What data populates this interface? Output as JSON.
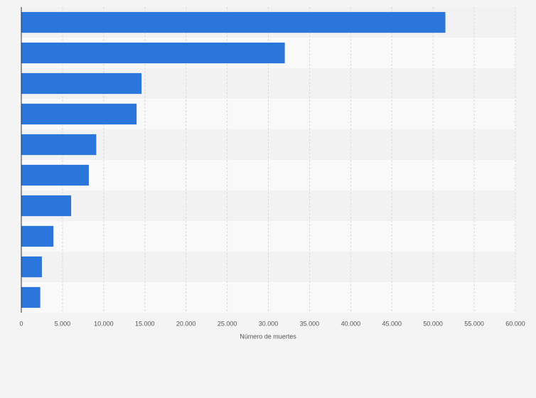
{
  "chart_data": {
    "type": "hbar",
    "x_label": "Número de muertes",
    "categories": [
      null,
      null,
      null,
      null,
      null,
      null,
      null,
      null,
      null,
      null
    ],
    "values": [
      51500,
      32000,
      14600,
      14000,
      9100,
      8200,
      6050,
      3900,
      2500,
      2300
    ],
    "color": "#2a76dd",
    "xlim": [
      0,
      60000
    ],
    "xticks": [
      0,
      {
        "value": 5000,
        "label": "5.000"
      },
      {
        "value": 10000,
        "label": "10.000"
      },
      {
        "value": 15000,
        "label": "15.000"
      },
      {
        "value": 20000,
        "label": "20.000"
      },
      {
        "value": 25000,
        "label": "25.000"
      },
      {
        "value": 30000,
        "label": "30.000"
      },
      {
        "value": 35000,
        "label": "35.000"
      },
      {
        "value": 40000,
        "label": "40.000"
      },
      {
        "value": 45000,
        "label": "45.000"
      },
      {
        "value": 50000,
        "label": "50.000"
      },
      {
        "value": 55000,
        "label": "55.000"
      },
      {
        "value": 60000,
        "label": "60.000"
      }
    ],
    "grid": true
  }
}
